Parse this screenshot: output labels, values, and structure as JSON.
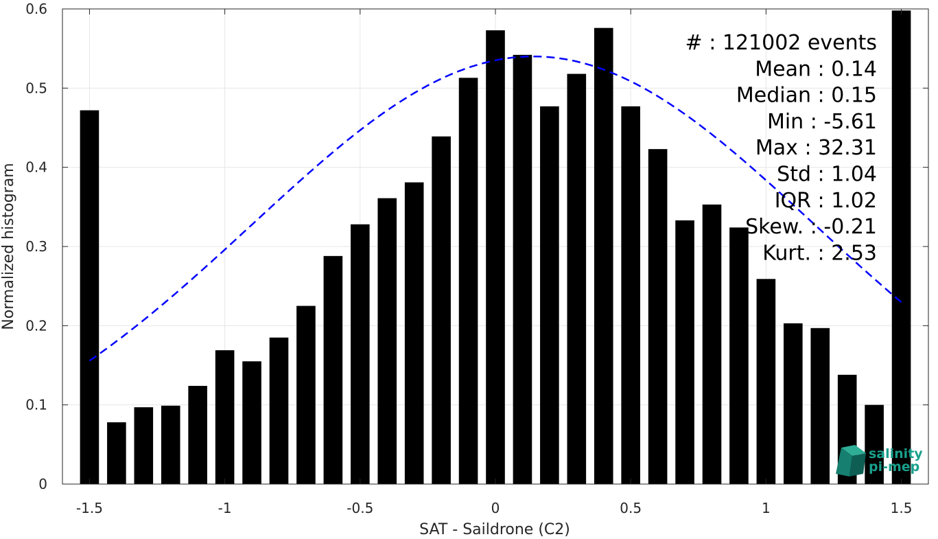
{
  "chart_data": {
    "type": "bar",
    "xlabel": "SAT - Saildrone (C2)",
    "ylabel": "Normalized histogram",
    "xlim": [
      -1.6,
      1.6
    ],
    "ylim": [
      0,
      0.6
    ],
    "grid": true,
    "x_ticks": [
      -1.5,
      -1,
      -0.5,
      0,
      0.5,
      1,
      1.5
    ],
    "x_tick_labels": [
      "-1.5",
      "-1",
      "-0.5",
      "0",
      "0.5",
      "1",
      "1.5"
    ],
    "y_ticks": [
      0,
      0.1,
      0.2,
      0.3,
      0.4,
      0.5,
      0.6
    ],
    "y_tick_labels": [
      "0",
      "0.1",
      "0.2",
      "0.3",
      "0.4",
      "0.5",
      "0.6"
    ],
    "bar_color": "#000000",
    "bins": [
      -1.5,
      -1.4,
      -1.3,
      -1.2,
      -1.1,
      -1.0,
      -0.9,
      -0.8,
      -0.7,
      -0.6,
      -0.5,
      -0.4,
      -0.3,
      -0.2,
      -0.1,
      0.0,
      0.1,
      0.2,
      0.3,
      0.4,
      0.5,
      0.6,
      0.7,
      0.8,
      0.9,
      1.0,
      1.1,
      1.2,
      1.3,
      1.4,
      1.5
    ],
    "values": [
      0.472,
      0.078,
      0.097,
      0.099,
      0.124,
      0.169,
      0.155,
      0.185,
      0.225,
      0.288,
      0.328,
      0.361,
      0.381,
      0.439,
      0.513,
      0.573,
      0.542,
      0.477,
      0.518,
      0.576,
      0.477,
      0.423,
      0.333,
      0.353,
      0.324,
      0.259,
      0.203,
      0.197,
      0.138,
      0.1,
      0.598
    ],
    "fit_curve": {
      "type": "gaussian",
      "color": "#0000ff",
      "style": "dashed",
      "mean": 0.14,
      "std": 1.04,
      "x_range": [
        -1.5,
        1.5
      ],
      "peak": 0.54
    },
    "annotations": [
      "#  : 121002 events",
      "Mean : 0.14",
      "Median : 0.15",
      "Min : -5.61",
      "Max : 32.31",
      "Std : 1.04",
      "IQR : 1.02",
      "Skew. : -0.21",
      "Kurt. : 2.53"
    ]
  },
  "logo": {
    "line1": "salinity",
    "line2": "pi-mep",
    "color": "#19a08c"
  }
}
